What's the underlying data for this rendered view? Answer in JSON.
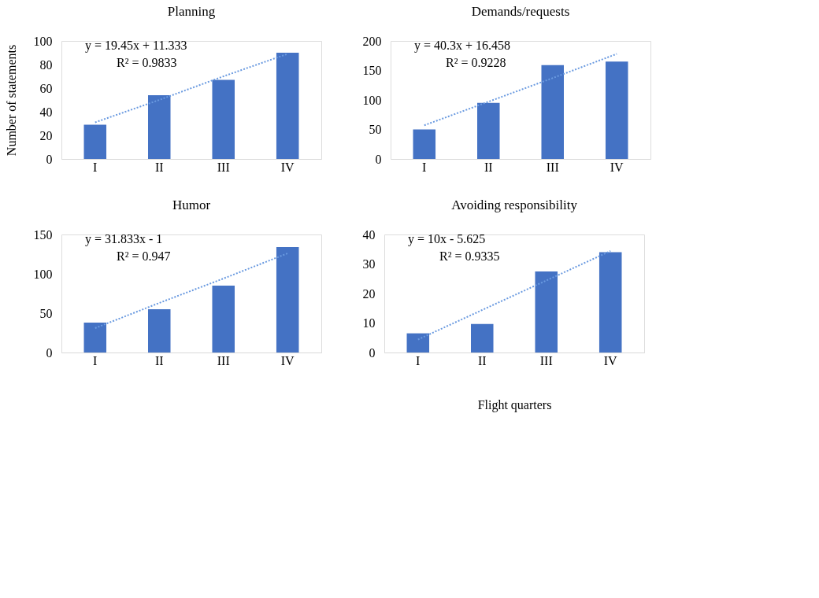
{
  "chart_data": [
    {
      "type": "bar",
      "title": "Planning",
      "ylabel": "Number of statements",
      "categories": [
        "I",
        "II",
        "III",
        "IV"
      ],
      "ylim": [
        0,
        100
      ],
      "yticks": [
        0,
        20,
        40,
        60,
        80,
        100
      ],
      "grid": false,
      "annotations": [
        "y = 19.45x + 11.333",
        "R² = 0.9833"
      ],
      "series": [
        {
          "color": "#4472c4",
          "values": [
            29,
            54,
            67,
            90
          ]
        },
        {
          "type": "line",
          "color": "#6a9ae0",
          "line_style": "dotted",
          "x": [
            "I",
            "II",
            "III",
            "IV"
          ],
          "values": [
            31,
            50,
            70,
            89
          ]
        }
      ]
    },
    {
      "type": "bar",
      "title": "Demands/requests",
      "categories": [
        "I",
        "II",
        "III",
        "IV"
      ],
      "ylim": [
        0,
        200
      ],
      "yticks": [
        0,
        50,
        100,
        150,
        200
      ],
      "grid": false,
      "annotations": [
        "y = 40.3x + 16.458",
        "R² = 0.9228"
      ],
      "series": [
        {
          "color": "#4472c4",
          "values": [
            50,
            95,
            159,
            165
          ]
        },
        {
          "type": "line",
          "color": "#6a9ae0",
          "line_style": "dotted",
          "x": [
            "I",
            "II",
            "III",
            "IV"
          ],
          "values": [
            57,
            97,
            137,
            178
          ]
        }
      ]
    },
    {
      "type": "bar",
      "title": "Humor",
      "categories": [
        "I",
        "II",
        "III",
        "IV"
      ],
      "ylim": [
        0,
        150
      ],
      "yticks": [
        0,
        50,
        100,
        150
      ],
      "grid": false,
      "annotations": [
        "y = 31.833x - 1",
        "R² = 0.947"
      ],
      "series": [
        {
          "color": "#4472c4",
          "values": [
            38,
            55,
            85,
            134
          ]
        },
        {
          "type": "line",
          "color": "#6a9ae0",
          "line_style": "dotted",
          "x": [
            "I",
            "II",
            "III",
            "IV"
          ],
          "values": [
            31,
            63,
            94,
            126
          ]
        }
      ]
    },
    {
      "type": "bar",
      "title": "Avoiding responsibility",
      "xlabel": "Flight quarters",
      "categories": [
        "I",
        "II",
        "III",
        "IV"
      ],
      "ylim": [
        0,
        40
      ],
      "yticks": [
        0,
        10,
        20,
        30,
        40
      ],
      "grid": false,
      "annotations": [
        "y = 10x - 5.625",
        "R² = 0.9335"
      ],
      "series": [
        {
          "color": "#4472c4",
          "values": [
            6.5,
            9.7,
            27.5,
            34
          ]
        },
        {
          "type": "line",
          "color": "#6a9ae0",
          "line_style": "dotted",
          "x": [
            "I",
            "II",
            "III",
            "IV"
          ],
          "values": [
            4.4,
            14.4,
            24.4,
            34.4
          ]
        }
      ]
    }
  ]
}
